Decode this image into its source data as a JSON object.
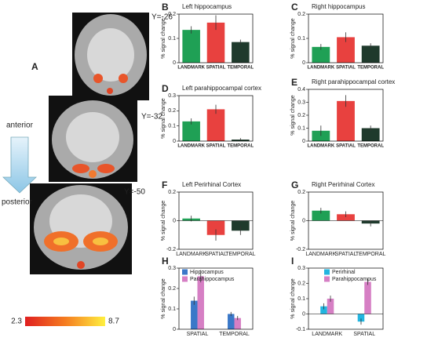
{
  "panel_a": {
    "label": "A",
    "slices": [
      "Y=-26",
      "Y=-32",
      "Y=-50"
    ],
    "anterior": "anterior",
    "posterior": "posterior",
    "colorbar": [
      2.3,
      8.7
    ]
  },
  "chart_data": [
    {
      "type": "bar",
      "panel": "B",
      "title": "Left hippocampus",
      "ylabel": "% signal change",
      "categories": [
        "LANDMARK",
        "SPATIAL",
        "TEMPORAL"
      ],
      "colors": [
        "#1fa055",
        "#e8413f",
        "#1f3a2c"
      ],
      "values": [
        0.135,
        0.165,
        0.085
      ],
      "errors": [
        0.015,
        0.03,
        0.01
      ],
      "ylim": [
        0,
        0.2
      ],
      "yticks": [
        0,
        0.1,
        0.2
      ]
    },
    {
      "type": "bar",
      "panel": "C",
      "title": "Right hippocampus",
      "ylabel": "% signal change",
      "categories": [
        "LANDMARK",
        "SPATIAL",
        "TEMPORAL"
      ],
      "colors": [
        "#1fa055",
        "#e8413f",
        "#1f3a2c"
      ],
      "values": [
        0.065,
        0.105,
        0.07
      ],
      "errors": [
        0.012,
        0.02,
        0.01
      ],
      "ylim": [
        0,
        0.2
      ],
      "yticks": [
        0,
        0.1,
        0.2
      ]
    },
    {
      "type": "bar",
      "panel": "D",
      "title": "Left parahippocampal cortex",
      "ylabel": "% signal change",
      "categories": [
        "LANDMARK",
        "SPATIAL",
        "TEMPORAL"
      ],
      "colors": [
        "#1fa055",
        "#e8413f",
        "#1f3a2c"
      ],
      "values": [
        0.13,
        0.21,
        0.01
      ],
      "errors": [
        0.02,
        0.03,
        0.01
      ],
      "ylim": [
        0,
        0.3
      ],
      "yticks": [
        0,
        0.1,
        0.2,
        0.3
      ]
    },
    {
      "type": "bar",
      "panel": "E",
      "title": "Right parahippocampal cortex",
      "ylabel": "% signal change",
      "categories": [
        "LANDMARK",
        "SPATIAL",
        "TEMPORAL"
      ],
      "colors": [
        "#1fa055",
        "#e8413f",
        "#1f3a2c"
      ],
      "values": [
        0.08,
        0.31,
        0.1
      ],
      "errors": [
        0.04,
        0.045,
        0.02
      ],
      "ylim": [
        0,
        0.4
      ],
      "yticks": [
        0,
        0.1,
        0.2,
        0.3,
        0.4
      ]
    },
    {
      "type": "bar",
      "panel": "F",
      "title": "Left Perirhinal Cortex",
      "ylabel": "% signal change",
      "categories": [
        "LANDMARK",
        "SPATIAL",
        "TEMPORAL"
      ],
      "colors": [
        "#1fa055",
        "#e8413f",
        "#1f3a2c"
      ],
      "values": [
        0.015,
        -0.1,
        -0.07
      ],
      "errors": [
        0.02,
        0.04,
        0.03
      ],
      "ylim": [
        -0.2,
        0.2
      ],
      "yticks": [
        -0.2,
        0,
        0.2
      ]
    },
    {
      "type": "bar",
      "panel": "G",
      "title": "Right Perirhinal Cortex",
      "ylabel": "% signal change",
      "categories": [
        "LANDMARK",
        "SPATIAL",
        "TEMPORAL"
      ],
      "colors": [
        "#1fa055",
        "#e8413f",
        "#1f3a2c"
      ],
      "values": [
        0.07,
        0.045,
        -0.02
      ],
      "errors": [
        0.02,
        0.02,
        0.02
      ],
      "ylim": [
        -0.2,
        0.2
      ],
      "yticks": [
        -0.2,
        0,
        0.2
      ]
    },
    {
      "type": "grouped_bar",
      "panel": "H",
      "ylabel": "% signal change",
      "categories": [
        "SPATIAL",
        "TEMPORAL"
      ],
      "legend": "upper left",
      "series": [
        {
          "name": "Hippocampus",
          "color": "#3a78c8",
          "values": [
            0.14,
            0.075
          ],
          "errors": [
            0.02,
            0.01
          ]
        },
        {
          "name": "Parahippocampus",
          "color": "#d67fc4",
          "values": [
            0.26,
            0.055
          ],
          "errors": [
            0.03,
            0.01
          ]
        }
      ],
      "ylim": [
        0,
        0.3
      ],
      "yticks": [
        0,
        0.1,
        0.2,
        0.3
      ]
    },
    {
      "type": "grouped_bar",
      "panel": "I",
      "ylabel": "% signal change",
      "categories": [
        "LANDMARK",
        "SPATIAL"
      ],
      "legend": "upper right",
      "series": [
        {
          "name": "Perirhinal",
          "color": "#22b5e0",
          "values": [
            0.05,
            -0.05
          ],
          "errors": [
            0.02,
            0.02
          ]
        },
        {
          "name": "Parahippocampus",
          "color": "#d67fc4",
          "values": [
            0.1,
            0.21
          ],
          "errors": [
            0.02,
            0.02
          ]
        }
      ],
      "ylim": [
        -0.1,
        0.3
      ],
      "yticks": [
        -0.1,
        0,
        0.1,
        0.2,
        0.3
      ]
    }
  ]
}
